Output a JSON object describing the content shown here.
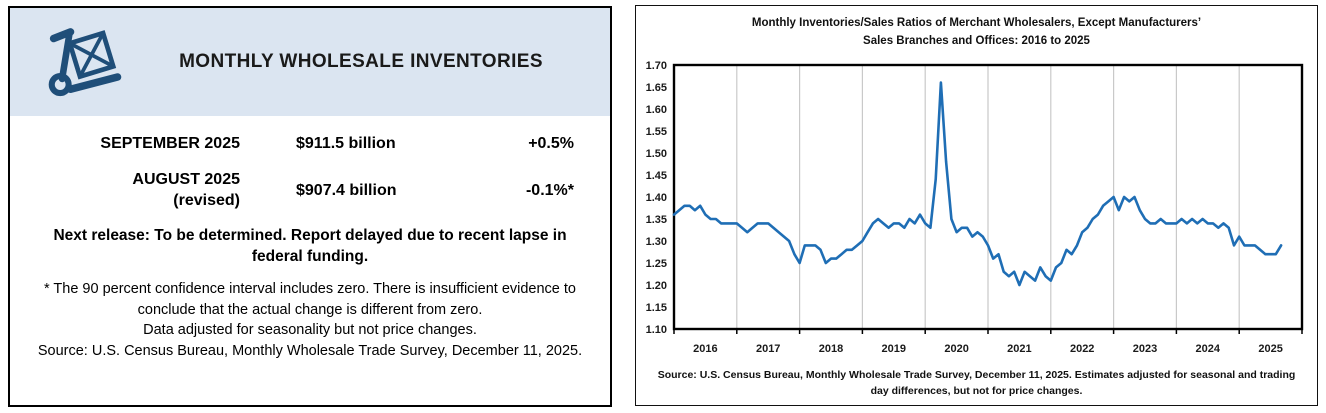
{
  "left_panel": {
    "header": {
      "title": "MONTHLY WHOLESALE INVENTORIES",
      "bg_color": "#dbe5f1",
      "icon": "hand-truck-icon",
      "icon_color": "#1f4e79"
    },
    "rows": [
      {
        "period": "SEPTEMBER 2025",
        "period_note": "",
        "value": "$911.5 billion",
        "change": "+0.5%"
      },
      {
        "period": "AUGUST 2025",
        "period_note": "(revised)",
        "value": "$907.4 billion",
        "change": "-0.1%*"
      }
    ],
    "next_release": "Next release: To be determined. Report delayed due to recent lapse in federal funding.",
    "footnote_confidence": "* The 90 percent confidence interval includes zero. There is insufficient evidence to conclude that the actual change is different from zero.",
    "footnote_adjustment": "Data adjusted for seasonality but not price changes.",
    "footnote_source": "Source: U.S. Census Bureau, Monthly Wholesale Trade Survey, December 11, 2025."
  },
  "chart": {
    "title_line1": "Monthly Inventories/Sales Ratios of Merchant Wholesalers, Except Manufacturers’",
    "title_line2": "Sales Branches and Offices: 2016 to 2025",
    "source_line1": "Source: U.S. Census Bureau, Monthly Wholesale Trade Survey, December 11, 2025. Estimates adjusted for seasonal and trading",
    "source_line2": "day differences, but not for price changes."
  },
  "chart_data": {
    "type": "line",
    "title": "Monthly Inventories/Sales Ratios of Merchant Wholesalers, Except Manufacturers’ Sales Branches and Offices: 2016 to 2025",
    "frequency": "monthly",
    "x_start": "2016-01",
    "x_end": "2025-09",
    "years": [
      "2016",
      "2017",
      "2018",
      "2019",
      "2020",
      "2021",
      "2022",
      "2023",
      "2024",
      "2025"
    ],
    "ylim": [
      1.1,
      1.7
    ],
    "ytick_step": 0.05,
    "grid": "vertical-yearly",
    "legend": "none",
    "line_color": "#1f6eb5",
    "grid_color": "#c9c9c9",
    "axis_color": "#000000",
    "series": [
      {
        "name": "Inventories/Sales Ratio",
        "values": [
          1.36,
          1.37,
          1.38,
          1.38,
          1.37,
          1.38,
          1.36,
          1.35,
          1.35,
          1.34,
          1.34,
          1.34,
          1.34,
          1.33,
          1.32,
          1.33,
          1.34,
          1.34,
          1.34,
          1.33,
          1.32,
          1.31,
          1.3,
          1.27,
          1.25,
          1.29,
          1.29,
          1.29,
          1.28,
          1.25,
          1.26,
          1.26,
          1.27,
          1.28,
          1.28,
          1.29,
          1.3,
          1.32,
          1.34,
          1.35,
          1.34,
          1.33,
          1.34,
          1.34,
          1.33,
          1.35,
          1.34,
          1.36,
          1.34,
          1.33,
          1.44,
          1.66,
          1.48,
          1.35,
          1.32,
          1.33,
          1.33,
          1.31,
          1.32,
          1.31,
          1.29,
          1.26,
          1.27,
          1.23,
          1.22,
          1.23,
          1.2,
          1.23,
          1.22,
          1.21,
          1.24,
          1.22,
          1.21,
          1.24,
          1.25,
          1.28,
          1.27,
          1.29,
          1.32,
          1.33,
          1.35,
          1.36,
          1.38,
          1.39,
          1.4,
          1.37,
          1.4,
          1.39,
          1.4,
          1.37,
          1.35,
          1.34,
          1.34,
          1.35,
          1.34,
          1.34,
          1.34,
          1.35,
          1.34,
          1.35,
          1.34,
          1.35,
          1.34,
          1.34,
          1.33,
          1.34,
          1.33,
          1.29,
          1.31,
          1.29,
          1.29,
          1.29,
          1.28,
          1.27,
          1.27,
          1.27,
          1.29
        ]
      }
    ]
  }
}
